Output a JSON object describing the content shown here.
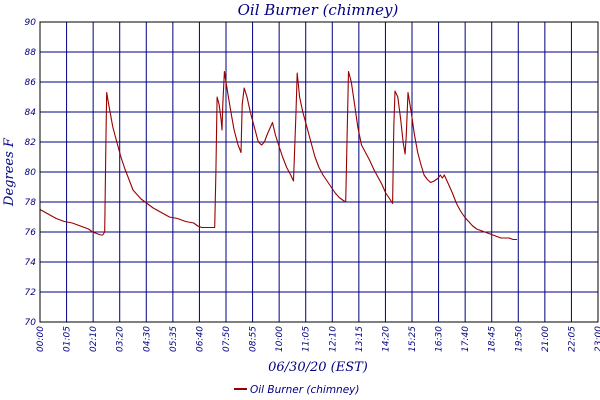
{
  "chart_data": {
    "type": "line",
    "title": "Oil Burner (chimney)",
    "xlabel": "06/30/20 (EST)",
    "ylabel": "Degrees F",
    "x_tick_labels": [
      "00:00",
      "01:05",
      "02:10",
      "03:20",
      "04:30",
      "05:35",
      "06:40",
      "07:50",
      "08:55",
      "10:00",
      "11:05",
      "12:10",
      "13:15",
      "14:20",
      "15:25",
      "16:30",
      "17:40",
      "18:45",
      "19:50",
      "21:00",
      "22:05",
      "23:00"
    ],
    "y_ticks": [
      70,
      72,
      74,
      76,
      78,
      80,
      82,
      84,
      86,
      88,
      90
    ],
    "xlim": [
      0,
      1380
    ],
    "ylim": [
      70,
      90
    ],
    "grid": true,
    "legend_position": "bottom-center",
    "series": [
      {
        "name": "Oil Burner (chimney)",
        "color": "#990000",
        "points": [
          [
            0,
            77.5
          ],
          [
            20,
            77.2
          ],
          [
            40,
            76.9
          ],
          [
            60,
            76.7
          ],
          [
            80,
            76.6
          ],
          [
            100,
            76.4
          ],
          [
            120,
            76.2
          ],
          [
            130,
            76.0
          ],
          [
            140,
            75.9
          ],
          [
            150,
            75.8
          ],
          [
            155,
            75.8
          ],
          [
            160,
            76.0
          ],
          [
            163,
            82.0
          ],
          [
            165,
            85.3
          ],
          [
            170,
            84.5
          ],
          [
            180,
            83.0
          ],
          [
            190,
            82.0
          ],
          [
            200,
            81.0
          ],
          [
            210,
            80.2
          ],
          [
            220,
            79.5
          ],
          [
            230,
            78.8
          ],
          [
            240,
            78.5
          ],
          [
            250,
            78.2
          ],
          [
            260,
            78.0
          ],
          [
            280,
            77.6
          ],
          [
            300,
            77.3
          ],
          [
            320,
            77.0
          ],
          [
            340,
            76.9
          ],
          [
            360,
            76.7
          ],
          [
            380,
            76.6
          ],
          [
            390,
            76.4
          ],
          [
            400,
            76.3
          ],
          [
            420,
            76.3
          ],
          [
            432,
            76.3
          ],
          [
            435,
            80.0
          ],
          [
            438,
            85.0
          ],
          [
            443,
            84.5
          ],
          [
            448,
            83.5
          ],
          [
            450,
            82.8
          ],
          [
            452,
            84.5
          ],
          [
            456,
            86.7
          ],
          [
            460,
            86.0
          ],
          [
            466,
            85.0
          ],
          [
            472,
            84.0
          ],
          [
            480,
            82.8
          ],
          [
            490,
            81.8
          ],
          [
            497,
            81.3
          ],
          [
            500,
            84.5
          ],
          [
            505,
            85.6
          ],
          [
            512,
            85.0
          ],
          [
            520,
            84.0
          ],
          [
            530,
            83.0
          ],
          [
            540,
            82.0
          ],
          [
            548,
            81.8
          ],
          [
            555,
            82.0
          ],
          [
            562,
            82.5
          ],
          [
            570,
            83.0
          ],
          [
            575,
            83.3
          ],
          [
            582,
            82.5
          ],
          [
            590,
            81.8
          ],
          [
            600,
            81.0
          ],
          [
            610,
            80.3
          ],
          [
            620,
            79.8
          ],
          [
            627,
            79.4
          ],
          [
            633,
            84.0
          ],
          [
            636,
            86.6
          ],
          [
            642,
            85.0
          ],
          [
            650,
            84.0
          ],
          [
            660,
            83.0
          ],
          [
            670,
            82.0
          ],
          [
            680,
            81.0
          ],
          [
            690,
            80.3
          ],
          [
            700,
            79.8
          ],
          [
            710,
            79.4
          ],
          [
            720,
            79.0
          ],
          [
            730,
            78.6
          ],
          [
            740,
            78.3
          ],
          [
            750,
            78.1
          ],
          [
            756,
            78.0
          ],
          [
            760,
            83.0
          ],
          [
            763,
            86.7
          ],
          [
            770,
            86.0
          ],
          [
            778,
            84.5
          ],
          [
            786,
            83.0
          ],
          [
            795,
            81.8
          ],
          [
            805,
            81.3
          ],
          [
            815,
            80.8
          ],
          [
            825,
            80.2
          ],
          [
            835,
            79.7
          ],
          [
            845,
            79.2
          ],
          [
            855,
            78.6
          ],
          [
            865,
            78.2
          ],
          [
            872,
            77.9
          ],
          [
            875,
            83.0
          ],
          [
            878,
            85.4
          ],
          [
            885,
            85.0
          ],
          [
            892,
            83.5
          ],
          [
            898,
            82.0
          ],
          [
            903,
            81.2
          ],
          [
            906,
            82.5
          ],
          [
            910,
            85.3
          ],
          [
            918,
            84.0
          ],
          [
            926,
            82.5
          ],
          [
            934,
            81.3
          ],
          [
            942,
            80.5
          ],
          [
            950,
            79.8
          ],
          [
            958,
            79.5
          ],
          [
            966,
            79.3
          ],
          [
            975,
            79.4
          ],
          [
            985,
            79.6
          ],
          [
            990,
            79.8
          ],
          [
            995,
            79.6
          ],
          [
            1000,
            79.8
          ],
          [
            1010,
            79.2
          ],
          [
            1020,
            78.6
          ],
          [
            1030,
            77.9
          ],
          [
            1040,
            77.4
          ],
          [
            1050,
            77.0
          ],
          [
            1060,
            76.7
          ],
          [
            1070,
            76.4
          ],
          [
            1080,
            76.2
          ],
          [
            1090,
            76.1
          ],
          [
            1100,
            76.0
          ],
          [
            1110,
            75.9
          ],
          [
            1120,
            75.8
          ],
          [
            1130,
            75.7
          ],
          [
            1140,
            75.6
          ],
          [
            1150,
            75.6
          ],
          [
            1160,
            75.6
          ],
          [
            1170,
            75.5
          ],
          [
            1180,
            75.5
          ]
        ]
      }
    ]
  }
}
